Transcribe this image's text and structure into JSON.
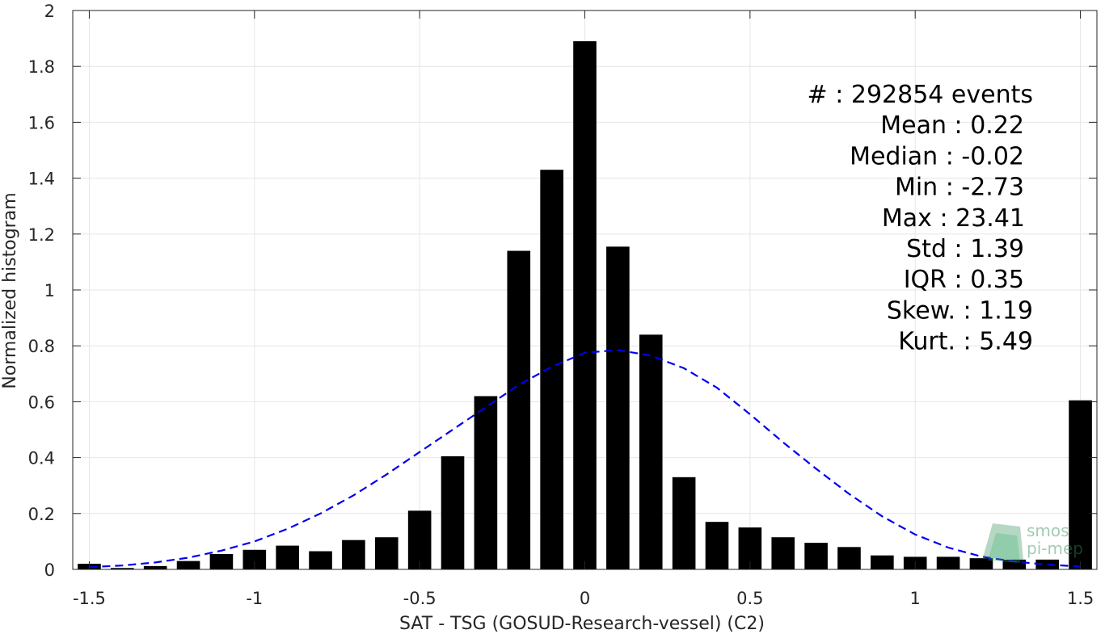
{
  "chart_data": {
    "type": "bar",
    "xlabel": "SAT - TSG (GOSUD-Research-vessel) (C2)",
    "ylabel": "Normalized histogram",
    "xlim": [
      -1.55,
      1.55
    ],
    "ylim": [
      0,
      2
    ],
    "grid": true,
    "x_ticks": [
      -1.5,
      -1,
      -0.5,
      0,
      0.5,
      1,
      1.5
    ],
    "x_tick_labels": [
      "-1.5",
      "-1",
      "-0.5",
      "0",
      "0.5",
      "1",
      "1.5"
    ],
    "y_ticks": [
      0,
      0.2,
      0.4,
      0.6,
      0.8,
      1,
      1.2,
      1.4,
      1.6,
      1.8,
      2
    ],
    "y_tick_labels": [
      "0",
      "0.2",
      "0.4",
      "0.6",
      "0.8",
      "1",
      "1.2",
      "1.4",
      "1.6",
      "1.8",
      "2"
    ],
    "bar_width": 0.07,
    "bars": {
      "x": [
        -1.5,
        -1.4,
        -1.3,
        -1.2,
        -1.1,
        -1.0,
        -0.9,
        -0.8,
        -0.7,
        -0.6,
        -0.5,
        -0.4,
        -0.3,
        -0.2,
        -0.1,
        0.0,
        0.1,
        0.2,
        0.3,
        0.4,
        0.5,
        0.6,
        0.7,
        0.8,
        0.9,
        1.0,
        1.1,
        1.2,
        1.3,
        1.4,
        1.5
      ],
      "values": [
        0.02,
        0.005,
        0.012,
        0.03,
        0.055,
        0.07,
        0.085,
        0.065,
        0.105,
        0.115,
        0.21,
        0.405,
        0.62,
        1.14,
        1.43,
        1.89,
        1.155,
        0.84,
        0.33,
        0.17,
        0.15,
        0.115,
        0.095,
        0.08,
        0.05,
        0.045,
        0.045,
        0.04,
        0.035,
        0.035,
        0.605
      ],
      "color": "#000000"
    },
    "fit_curve": {
      "style": "dashed",
      "color": "#0000ee",
      "x": [
        -1.5,
        -1.4,
        -1.3,
        -1.2,
        -1.1,
        -1.0,
        -0.9,
        -0.8,
        -0.7,
        -0.6,
        -0.5,
        -0.4,
        -0.3,
        -0.2,
        -0.1,
        0.0,
        0.1,
        0.2,
        0.3,
        0.4,
        0.5,
        0.6,
        0.7,
        0.8,
        0.9,
        1.0,
        1.1,
        1.2,
        1.3,
        1.4,
        1.5
      ],
      "values": [
        0.008,
        0.014,
        0.025,
        0.042,
        0.067,
        0.1,
        0.145,
        0.2,
        0.265,
        0.34,
        0.42,
        0.5,
        0.58,
        0.66,
        0.725,
        0.775,
        0.785,
        0.765,
        0.72,
        0.65,
        0.555,
        0.455,
        0.36,
        0.27,
        0.19,
        0.125,
        0.078,
        0.046,
        0.028,
        0.017,
        0.01
      ]
    },
    "annotations": [
      "#  : 292854 events",
      "Mean : 0.22",
      "Median : -0.02",
      "Min : -2.73",
      "Max : 23.41",
      "Std : 1.39",
      "IQR : 0.35",
      "Skew. : 1.19",
      "Kurt. : 5.49"
    ],
    "logo": [
      "smos",
      "pi-mep"
    ]
  }
}
